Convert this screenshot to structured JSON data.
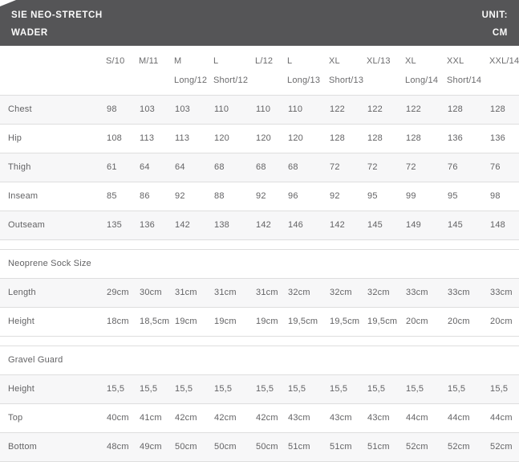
{
  "header": {
    "title_line1": "SIE NEO-STRETCH",
    "title_line2": "WADER",
    "unit_label": "UNIT:",
    "unit_value": "CM"
  },
  "chart_data": {
    "type": "table",
    "title": "SIE NEO-STRETCH WADER",
    "unit": "CM",
    "columns": [
      {
        "line1": "S/10",
        "line2": ""
      },
      {
        "line1": "M/11",
        "line2": ""
      },
      {
        "line1": "M",
        "line2": "Long/12"
      },
      {
        "line1": "L",
        "line2": "Short/12"
      },
      {
        "line1": "L/12",
        "line2": ""
      },
      {
        "line1": "L",
        "line2": "Long/13"
      },
      {
        "line1": "XL",
        "line2": "Short/13"
      },
      {
        "line1": "XL/13",
        "line2": ""
      },
      {
        "line1": "XL",
        "line2": "Long/14"
      },
      {
        "line1": "XXL",
        "line2": "Short/14"
      },
      {
        "line1": "XXL/14",
        "line2": ""
      }
    ],
    "sections": [
      {
        "title": "",
        "rows": [
          {
            "label": "Chest",
            "values": [
              "98",
              "103",
              "103",
              "110",
              "110",
              "110",
              "122",
              "122",
              "122",
              "128",
              "128"
            ]
          },
          {
            "label": "Hip",
            "values": [
              "108",
              "113",
              "113",
              "120",
              "120",
              "120",
              "128",
              "128",
              "128",
              "136",
              "136"
            ]
          },
          {
            "label": "Thigh",
            "values": [
              "61",
              "64",
              "64",
              "68",
              "68",
              "68",
              "72",
              "72",
              "72",
              "76",
              "76"
            ]
          },
          {
            "label": "Inseam",
            "values": [
              "85",
              "86",
              "92",
              "88",
              "92",
              "96",
              "92",
              "95",
              "99",
              "95",
              "98"
            ]
          },
          {
            "label": "Outseam",
            "values": [
              "135",
              "136",
              "142",
              "138",
              "142",
              "146",
              "142",
              "145",
              "149",
              "145",
              "148"
            ]
          }
        ]
      },
      {
        "title": "Neoprene Sock Size",
        "rows": [
          {
            "label": "Length",
            "values": [
              "29cm",
              "30cm",
              "31cm",
              "31cm",
              "31cm",
              "32cm",
              "32cm",
              "32cm",
              "33cm",
              "33cm",
              "33cm"
            ]
          },
          {
            "label": "Height",
            "values": [
              "18cm",
              "18,5cm",
              "19cm",
              "19cm",
              "19cm",
              "19,5cm",
              "19,5cm",
              "19,5cm",
              "20cm",
              "20cm",
              "20cm"
            ]
          }
        ]
      },
      {
        "title": "Gravel Guard",
        "rows": [
          {
            "label": "Height",
            "values": [
              "15,5",
              "15,5",
              "15,5",
              "15,5",
              "15,5",
              "15,5",
              "15,5",
              "15,5",
              "15,5",
              "15,5",
              "15,5"
            ]
          },
          {
            "label": "Top",
            "values": [
              "40cm",
              "41cm",
              "42cm",
              "42cm",
              "42cm",
              "43cm",
              "43cm",
              "43cm",
              "44cm",
              "44cm",
              "44cm"
            ]
          },
          {
            "label": "Bottom",
            "values": [
              "48cm",
              "49cm",
              "50cm",
              "50cm",
              "50cm",
              "51cm",
              "51cm",
              "51cm",
              "52cm",
              "52cm",
              "52cm"
            ]
          }
        ]
      }
    ],
    "colors": {
      "header_bg": "#555557",
      "header_text": "#fbfbfb",
      "row_stripe": "#f7f7f8",
      "border": "#dedede",
      "text": "#636365"
    }
  }
}
